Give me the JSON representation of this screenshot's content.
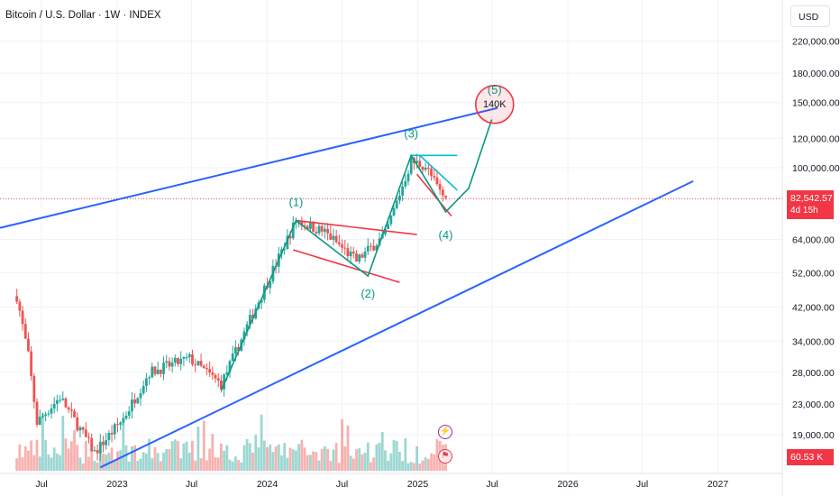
{
  "header": {
    "title": "Bitcoin / U.S. Dollar · 1W · INDEX"
  },
  "scale": {
    "currency_label": "USD"
  },
  "last_price": {
    "value": "82,542.57",
    "countdown": "4d 15h",
    "color": "#f23645"
  },
  "volume_tag": {
    "value": "60.53 K"
  },
  "chart_data": {
    "type": "candlestick",
    "title": "Bitcoin / U.S. Dollar · 1W · INDEX",
    "y_scale": "log",
    "y_ticks": [
      19000,
      23000,
      28000,
      34000,
      42000,
      52000,
      64000,
      82542.57,
      100000,
      120000,
      150000,
      180000,
      220000
    ],
    "y_tick_labels": [
      "19,000.00",
      "23,000.00",
      "28,000.00",
      "34,000.00",
      "42,000.00",
      "52,000.00",
      "64,000.00",
      "100,000.00",
      "120,000.00",
      "150,000.00",
      "180,000.00",
      "220,000.00"
    ],
    "x_tick_labels": [
      "Jul",
      "2023",
      "Jul",
      "2024",
      "Jul",
      "2025",
      "Jul",
      "2026",
      "Jul",
      "2027"
    ],
    "wave_labels": [
      "(1)",
      "(2)",
      "(3)",
      "(4)",
      "(5)"
    ],
    "target_label": "140K",
    "colors": {
      "up": "#26a69a",
      "down": "#ef5350",
      "trendline": "#2962ff",
      "wave": "#089981",
      "channel": "#f23645",
      "flag": "#00bcd4"
    },
    "anchors": [
      {
        "date": "2022-05-02",
        "price": 45000
      },
      {
        "date": "2022-05-30",
        "price": 31000
      },
      {
        "date": "2022-06-20",
        "price": 20500
      },
      {
        "date": "2022-08-15",
        "price": 24000
      },
      {
        "date": "2022-11-07",
        "price": 17000
      },
      {
        "date": "2023-01-16",
        "price": 21000
      },
      {
        "date": "2023-03-20",
        "price": 28000
      },
      {
        "date": "2023-06-26",
        "price": 30500
      },
      {
        "date": "2023-09-11",
        "price": 26000
      },
      {
        "date": "2023-12-04",
        "price": 42000
      },
      {
        "date": "2024-03-11",
        "price": 72000
      },
      {
        "date": "2024-05-20",
        "price": 67000
      },
      {
        "date": "2024-08-05",
        "price": 56000
      },
      {
        "date": "2024-10-14",
        "price": 66000
      },
      {
        "date": "2024-12-16",
        "price": 104000
      },
      {
        "date": "2025-01-20",
        "price": 101000
      },
      {
        "date": "2025-02-24",
        "price": 86000
      },
      {
        "date": "2025-03-10",
        "price": 82542.57
      }
    ],
    "annotations": {
      "upper_trendline": [
        {
          "date": "2021-12-20",
          "price": 65000
        },
        {
          "date": "2025-07-14",
          "price": 145000
        }
      ],
      "lower_trendline": [
        {
          "date": "2022-11-21",
          "price": 15500
        },
        {
          "date": "2026-11-02",
          "price": 92000
        }
      ],
      "wave_path": [
        {
          "date": "2023-09-11",
          "price": 25000
        },
        {
          "date": "2024-03-11",
          "price": 72000
        },
        {
          "date": "2024-09-02",
          "price": 51000
        },
        {
          "date": "2024-12-16",
          "price": 108000
        },
        {
          "date": "2025-03-10",
          "price": 76000
        },
        {
          "date": "2025-05-05",
          "price": 88000
        },
        {
          "date": "2025-06-30",
          "price": 135000
        }
      ],
      "channel_upper": [
        {
          "date": "2024-03-11",
          "price": 72000
        },
        {
          "date": "2024-12-30",
          "price": 66000
        }
      ],
      "channel_lower": [
        {
          "date": "2024-03-04",
          "price": 60000
        },
        {
          "date": "2024-11-18",
          "price": 49000
        }
      ],
      "flag_top": [
        {
          "date": "2024-12-16",
          "price": 108000
        },
        {
          "date": "2025-04-07",
          "price": 108000
        }
      ],
      "flag_upper": [
        {
          "date": "2025-01-06",
          "price": 108000
        },
        {
          "date": "2025-04-07",
          "price": 87000
        }
      ],
      "flag_lower": [
        {
          "date": "2024-12-30",
          "price": 96000
        },
        {
          "date": "2025-03-24",
          "price": 74000
        }
      ],
      "target_circle": {
        "date": "2025-07-07",
        "price": 145000
      }
    }
  }
}
